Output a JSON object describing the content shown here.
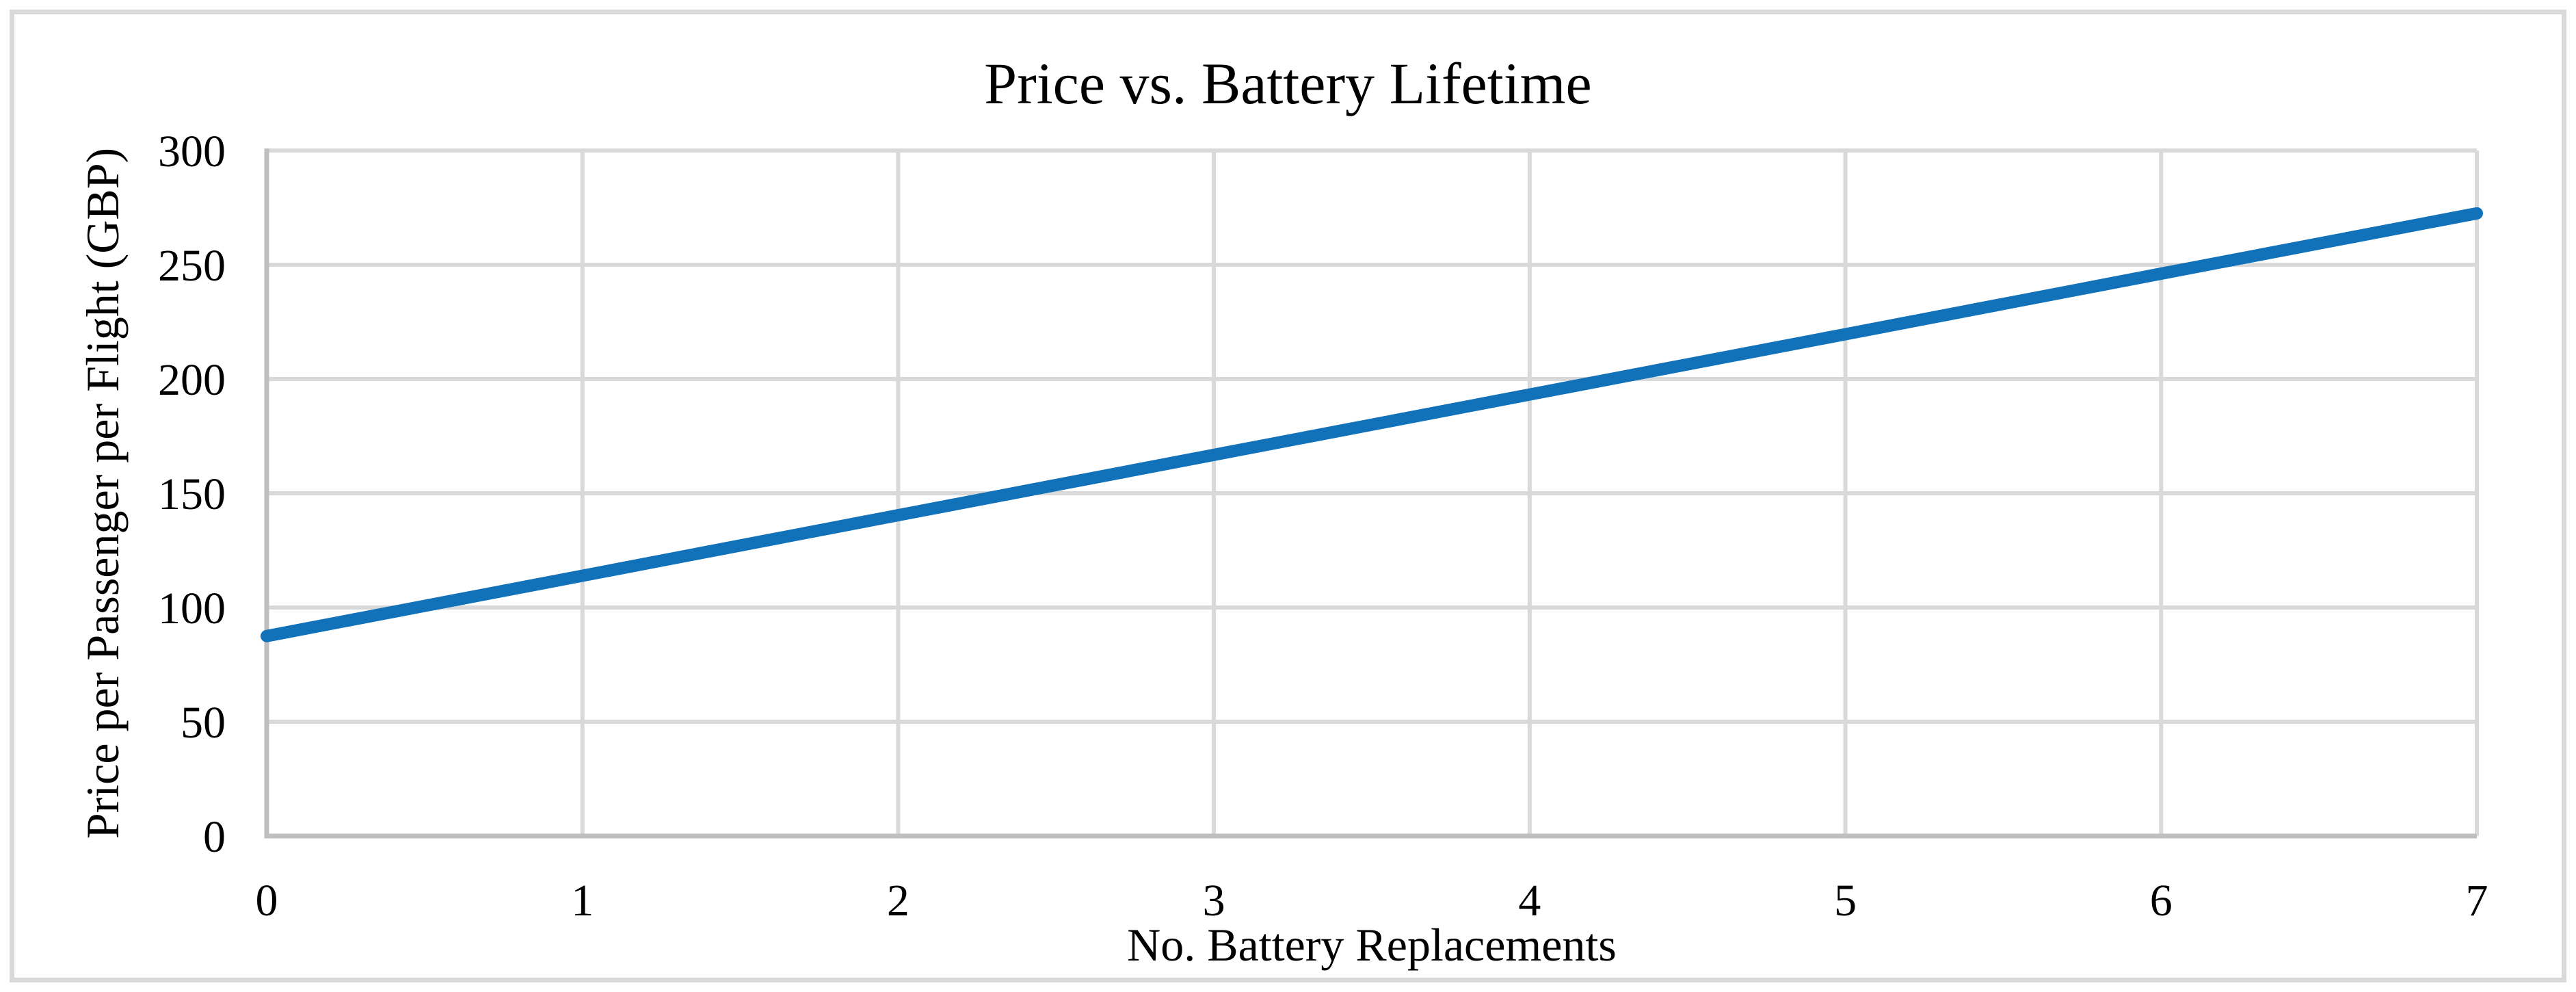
{
  "figure": {
    "background_color": "#ffffff",
    "border_color": "#d9d9d9"
  },
  "chart_data": {
    "type": "line",
    "title": "Price vs. Battery Lifetime",
    "xlabel": "No. Battery Replacements",
    "ylabel": "Price per Passenger per Flight (GBP)",
    "x": [
      0,
      1,
      2,
      3,
      4,
      5,
      6,
      7
    ],
    "series": [
      {
        "color": "#1172ba",
        "values": [
          87.5,
          113.9,
          140.4,
          166.8,
          193.2,
          219.6,
          246.1,
          272.5
        ]
      }
    ],
    "xlim": [
      0,
      7
    ],
    "ylim": [
      0,
      300
    ],
    "xticks": [
      0,
      1,
      2,
      3,
      4,
      5,
      6,
      7
    ],
    "yticks": [
      0,
      50,
      100,
      150,
      200,
      250,
      300
    ],
    "grid": true,
    "gridline_color": "#d9d9d9",
    "axis_line_color": "#bfbfbf",
    "legend": "none"
  }
}
